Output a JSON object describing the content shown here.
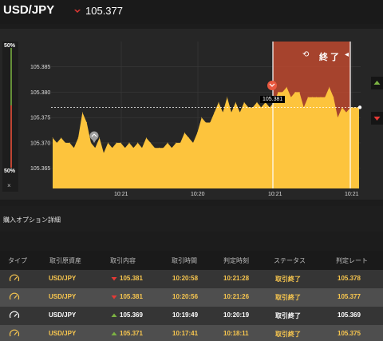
{
  "header": {
    "pair": "USD/JPY",
    "price": "105.377",
    "direction": "down"
  },
  "chart": {
    "pct_top": "50%",
    "pct_bottom": "50%",
    "close_mark": "×",
    "end_label": "終 了",
    "price_tag": "105.381",
    "y_ticks": [
      "105.385",
      "105.380",
      "105.375",
      "105.370",
      "105.365"
    ],
    "x_ticks": [
      "10:21",
      "10:20",
      "10:21",
      "10:21"
    ],
    "colors": {
      "area": "#fdc43d",
      "end_zone": "#b8482f",
      "up": "#7cb342",
      "down": "#e53935"
    }
  },
  "chart_data": {
    "type": "area",
    "ylim": [
      105.361,
      105.39
    ],
    "y_ticks": [
      105.385,
      105.38,
      105.375,
      105.37,
      105.365
    ],
    "x_ticks": [
      "10:21",
      "10:20",
      "10:21",
      "10:21"
    ],
    "series": [
      {
        "values": [
          105.371,
          105.37,
          105.371,
          105.37,
          105.37,
          105.369,
          105.371,
          105.376,
          105.374,
          105.37,
          105.369,
          105.371,
          105.368,
          105.37,
          105.369,
          105.37,
          105.37,
          105.369,
          105.37,
          105.369,
          105.37,
          105.369,
          105.371,
          105.37,
          105.369,
          105.369,
          105.369,
          105.37,
          105.369,
          105.37,
          105.37,
          105.372,
          105.371,
          105.37,
          105.372,
          105.375,
          105.374,
          105.374,
          105.376,
          105.378,
          105.376,
          105.379,
          105.376,
          105.378,
          105.376,
          105.378,
          105.377,
          105.377,
          105.378,
          105.377,
          105.378,
          105.377,
          105.378,
          105.38,
          105.38,
          105.381,
          105.379,
          105.38,
          105.38,
          105.377,
          105.379,
          105.379,
          105.379,
          105.379,
          105.379,
          105.381,
          105.379,
          105.375,
          105.377,
          105.376,
          105.377,
          105.377,
          105.377
        ]
      }
    ]
  },
  "section": {
    "title": "購入オプション詳細"
  },
  "table": {
    "headers": [
      "タイプ",
      "取引原資産",
      "取引内容",
      "取引時間",
      "判定時刻",
      "ステータス",
      "判定レート"
    ],
    "rows": [
      {
        "asset": "USD/JPY",
        "dir": "down",
        "rate": "105.381",
        "time": "10:20:58",
        "judge": "10:21:28",
        "status": "取引終了",
        "result": "105.378"
      },
      {
        "asset": "USD/JPY",
        "dir": "down",
        "rate": "105.381",
        "time": "10:20:56",
        "judge": "10:21:26",
        "status": "取引終了",
        "result": "105.377"
      },
      {
        "asset": "USD/JPY",
        "dir": "up",
        "rate": "105.369",
        "time": "10:19:49",
        "judge": "10:20:19",
        "status": "取引終了",
        "result": "105.369"
      },
      {
        "asset": "USD/JPY",
        "dir": "up",
        "rate": "105.371",
        "time": "10:17:41",
        "judge": "10:18:11",
        "status": "取引終了",
        "result": "105.375"
      }
    ]
  }
}
